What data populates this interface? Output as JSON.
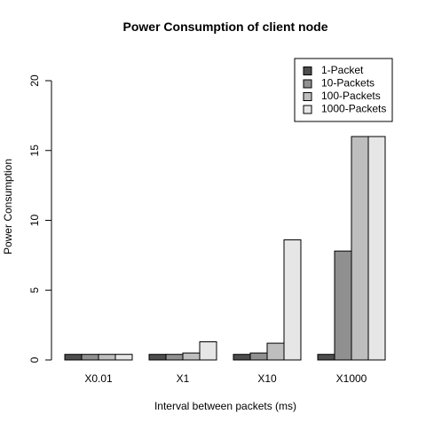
{
  "chart_data": {
    "type": "bar",
    "title": "Power Consumption of client node",
    "xlabel": "Interval between packets (ms)",
    "ylabel": "Power Consumption",
    "ylim": [
      0,
      20
    ],
    "yticks": [
      "0",
      "5",
      "10",
      "15",
      "20"
    ],
    "grid": false,
    "legend_position": "top-right",
    "categories": [
      "X0.01",
      "X1",
      "X10",
      "X1000"
    ],
    "series": [
      {
        "name": "1-Packet",
        "color": "#4d4d4d",
        "values": [
          0.4,
          0.4,
          0.4,
          0.4
        ]
      },
      {
        "name": "10-Packets",
        "color": "#909090",
        "values": [
          0.4,
          0.4,
          0.5,
          7.8
        ]
      },
      {
        "name": "100-Packets",
        "color": "#bebebe",
        "values": [
          0.4,
          0.5,
          1.2,
          16.0
        ]
      },
      {
        "name": "1000-Packets",
        "color": "#e6e6e6",
        "values": [
          0.4,
          1.3,
          8.6,
          16.0
        ]
      }
    ]
  }
}
